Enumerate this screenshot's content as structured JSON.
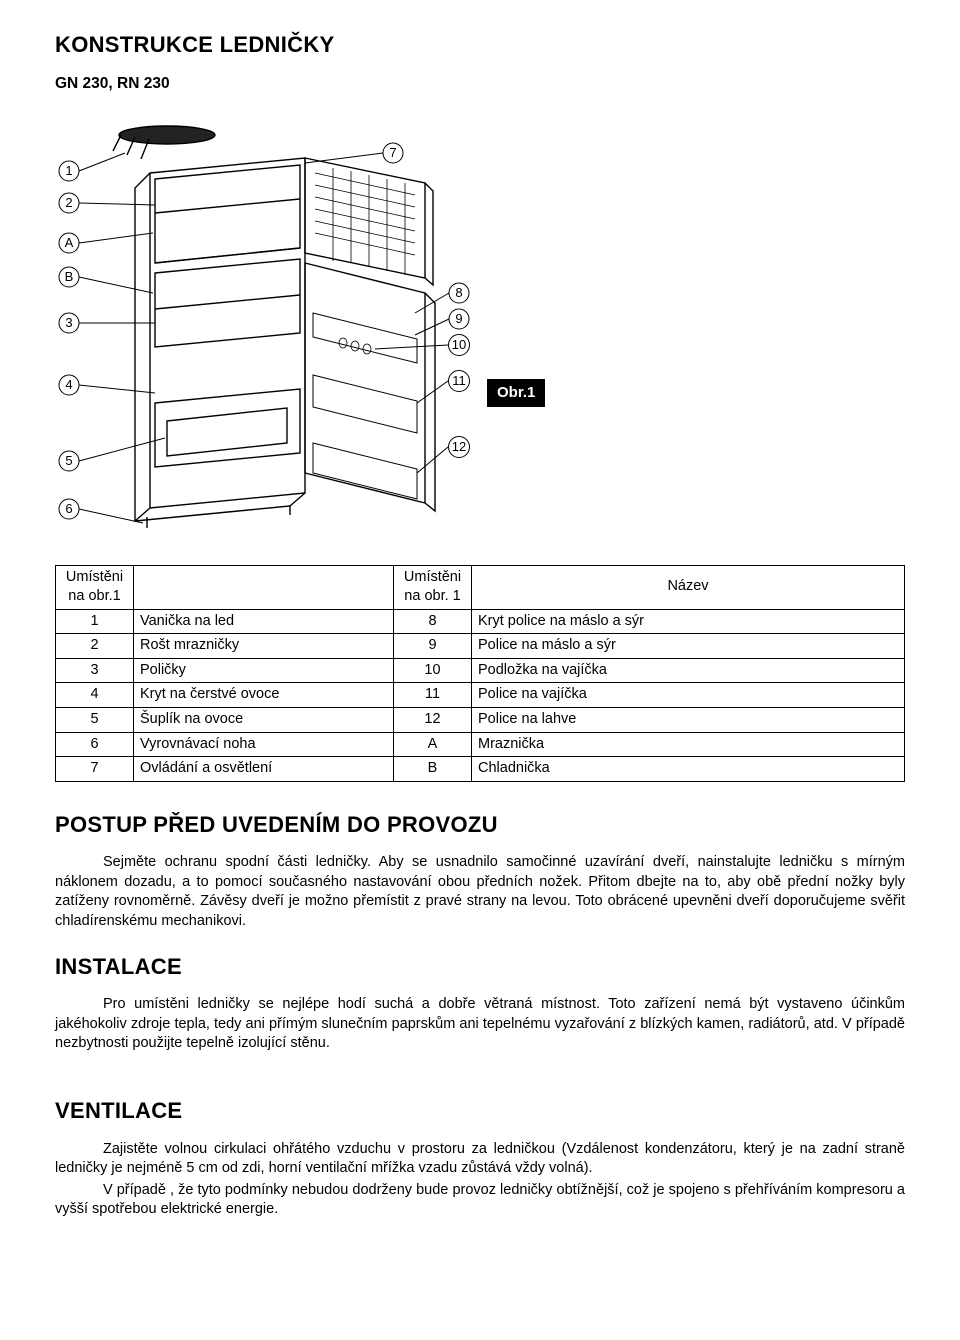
{
  "title_konstrukce": "KONSTRUKCE LEDNIČKY",
  "model": "GN 230, RN 230",
  "figure_label": "Obr.1",
  "table": {
    "headers": {
      "pos1": "Umístěni na obr.1",
      "pos2": "Umístěni na obr. 1",
      "name": "Název"
    },
    "rows": [
      {
        "n1": "1",
        "name1": "Vanička na led",
        "n2": "8",
        "name2": "Kryt police na máslo a sýr"
      },
      {
        "n1": "2",
        "name1": "Rošt mrazničky",
        "n2": "9",
        "name2": "Police na máslo a sýr"
      },
      {
        "n1": "3",
        "name1": "Poličky",
        "n2": "10",
        "name2": "Podložka na vajíčka"
      },
      {
        "n1": "4",
        "name1": "Kryt na čerstvé ovoce",
        "n2": "11",
        "name2": "Police na vajíčka"
      },
      {
        "n1": "5",
        "name1": "Šuplík na ovoce",
        "n2": "12",
        "name2": "Police na lahve"
      },
      {
        "n1": "6",
        "name1": "Vyrovnávací noha",
        "n2": "A",
        "name2": "Mraznička"
      },
      {
        "n1": "7",
        "name1": "Ovládání a osvětlení",
        "n2": "B",
        "name2": "Chladnička"
      }
    ]
  },
  "title_postup": "POSTUP PŘED UVEDENÍM DO PROVOZU",
  "para_postup": "Sejměte ochranu spodní části ledničky. Aby se usnadnilo samočinné uzavírání dveří, nainstalujte ledničku s mírným náklonem dozadu, a to pomocí  současného nastavování obou předních nožek. Přitom dbejte na to, aby obě přední nožky byly zatíženy rovnoměrně. Závěsy dveří je možno přemístit z pravé strany na levou. Toto obrácené upevněni dveří doporučujeme svěřit chladírenskému mechanikovi.",
  "title_instalace": "INSTALACE",
  "para_instalace": "Pro umístěni ledničky se nejlépe hodí suchá a dobře větraná místnost. Toto zařízení nemá být vystaveno účinkům jakéhokoliv zdroje tepla, tedy ani přímým slunečním paprskům ani tepelnému vyzařování z blízkých kamen, radiátorů,  atd. V případě  nezbytnosti použijte tepelně izolující stěnu.",
  "title_ventilace": "VENTILACE",
  "para_ventilace_1": "Zajistěte volnou cirkulaci ohřátého vzduchu v prostoru za ledničkou  (Vzdálenost kondenzátoru, který je na zadní straně ledničky je nejméně 5 cm od zdi, horní ventilační mřížka vzadu zůstává vždy volná).",
  "para_ventilace_2": "V případě , že tyto podmínky nebudou dodrženy bude provoz ledničky obtížnější, což je spojeno s přehříváním kompresoru a vyšší spotřebou elektrické energie.",
  "diagram": {
    "callouts_left": [
      "1",
      "2",
      "A",
      "B",
      "3",
      "4",
      "5",
      "6"
    ],
    "callouts_right": [
      "7",
      "8",
      "9",
      "10",
      "11",
      "12"
    ],
    "stroke": "#000000",
    "fill": "#ffffff"
  }
}
